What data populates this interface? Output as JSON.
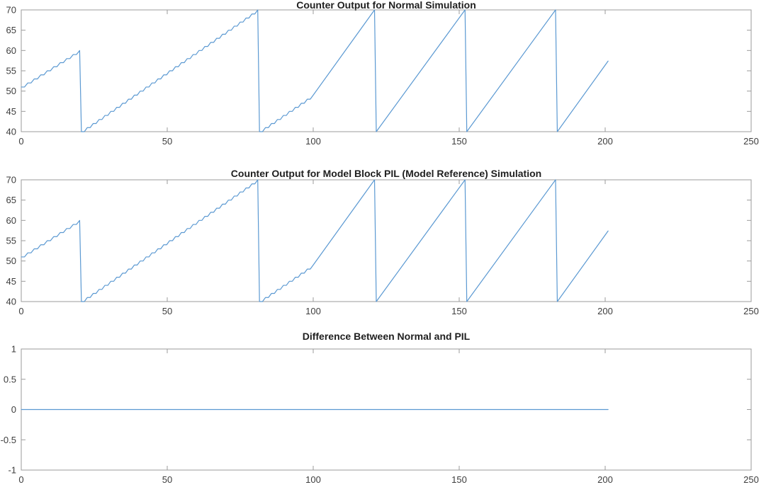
{
  "figure": {
    "background": "#ffffff"
  },
  "colors": {
    "line": "#5B99D2",
    "axis": "#9B9B9B",
    "tick_label": "#3D3D3D",
    "title": "#1F1F1F"
  },
  "chart_data": [
    {
      "type": "line",
      "title": "Counter Output for Normal Simulation",
      "xlabel": "",
      "ylabel": "",
      "xlim": [
        0,
        250
      ],
      "ylim": [
        40,
        70
      ],
      "xticks": [
        0,
        50,
        100,
        150,
        200,
        250
      ],
      "yticks": [
        40,
        45,
        50,
        55,
        60,
        65,
        70
      ],
      "grid": false,
      "legend": null,
      "series": [
        {
          "name": "normal-counter-output",
          "description": "Sawtooth counter: staircase slope ~0.5/s until t=100, then slope ~1/s; wraps from upper limit 70 to lower limit 40; data ends at t~201 at value ~57",
          "segments": [
            {
              "kind": "stair",
              "from": [
                0,
                51
              ],
              "to": [
                20,
                60
              ]
            },
            {
              "kind": "line",
              "from": [
                20,
                60
              ],
              "to": [
                20.6,
                40
              ]
            },
            {
              "kind": "stair",
              "from": [
                20.6,
                40
              ],
              "to": [
                81,
                70
              ]
            },
            {
              "kind": "line",
              "from": [
                81,
                70
              ],
              "to": [
                81.6,
                40
              ]
            },
            {
              "kind": "stair",
              "from": [
                81.6,
                40
              ],
              "to": [
                100,
                49
              ]
            },
            {
              "kind": "line",
              "from": [
                100,
                49
              ],
              "to": [
                121,
                70
              ]
            },
            {
              "kind": "line",
              "from": [
                121,
                70
              ],
              "to": [
                121.6,
                40
              ]
            },
            {
              "kind": "line",
              "from": [
                121.6,
                40
              ],
              "to": [
                152,
                70
              ]
            },
            {
              "kind": "line",
              "from": [
                152,
                70
              ],
              "to": [
                152.6,
                40
              ]
            },
            {
              "kind": "line",
              "from": [
                152.6,
                40
              ],
              "to": [
                183,
                70
              ]
            },
            {
              "kind": "line",
              "from": [
                183,
                70
              ],
              "to": [
                183.6,
                40
              ]
            },
            {
              "kind": "line",
              "from": [
                183.6,
                40
              ],
              "to": [
                201,
                57.4
              ]
            }
          ]
        }
      ]
    },
    {
      "type": "line",
      "title": "Counter Output for Model Block PIL (Model Reference) Simulation",
      "xlabel": "",
      "ylabel": "",
      "xlim": [
        0,
        250
      ],
      "ylim": [
        40,
        70
      ],
      "xticks": [
        0,
        50,
        100,
        150,
        200,
        250
      ],
      "yticks": [
        40,
        45,
        50,
        55,
        60,
        65,
        70
      ],
      "grid": false,
      "legend": null,
      "series": [
        {
          "name": "pil-counter-output",
          "description": "Identical sawtooth counter output as the Normal simulation",
          "segments": [
            {
              "kind": "stair",
              "from": [
                0,
                51
              ],
              "to": [
                20,
                60
              ]
            },
            {
              "kind": "line",
              "from": [
                20,
                60
              ],
              "to": [
                20.6,
                40
              ]
            },
            {
              "kind": "stair",
              "from": [
                20.6,
                40
              ],
              "to": [
                81,
                70
              ]
            },
            {
              "kind": "line",
              "from": [
                81,
                70
              ],
              "to": [
                81.6,
                40
              ]
            },
            {
              "kind": "stair",
              "from": [
                81.6,
                40
              ],
              "to": [
                100,
                49
              ]
            },
            {
              "kind": "line",
              "from": [
                100,
                49
              ],
              "to": [
                121,
                70
              ]
            },
            {
              "kind": "line",
              "from": [
                121,
                70
              ],
              "to": [
                121.6,
                40
              ]
            },
            {
              "kind": "line",
              "from": [
                121.6,
                40
              ],
              "to": [
                152,
                70
              ]
            },
            {
              "kind": "line",
              "from": [
                152,
                70
              ],
              "to": [
                152.6,
                40
              ]
            },
            {
              "kind": "line",
              "from": [
                152.6,
                40
              ],
              "to": [
                183,
                70
              ]
            },
            {
              "kind": "line",
              "from": [
                183,
                70
              ],
              "to": [
                183.6,
                40
              ]
            },
            {
              "kind": "line",
              "from": [
                183.6,
                40
              ],
              "to": [
                201,
                57.4
              ]
            }
          ]
        }
      ]
    },
    {
      "type": "line",
      "title": "Difference Between Normal and PIL",
      "xlabel": "",
      "ylabel": "",
      "xlim": [
        0,
        250
      ],
      "ylim": [
        -1,
        1
      ],
      "xticks": [
        0,
        50,
        100,
        150,
        200,
        250
      ],
      "yticks": [
        -1,
        -0.5,
        0,
        0.5,
        1
      ],
      "grid": false,
      "legend": null,
      "series": [
        {
          "name": "difference",
          "description": "Constant zero difference from t=0 to t~201",
          "segments": [
            {
              "kind": "line",
              "from": [
                0,
                0
              ],
              "to": [
                201,
                0
              ]
            }
          ]
        }
      ]
    }
  ]
}
